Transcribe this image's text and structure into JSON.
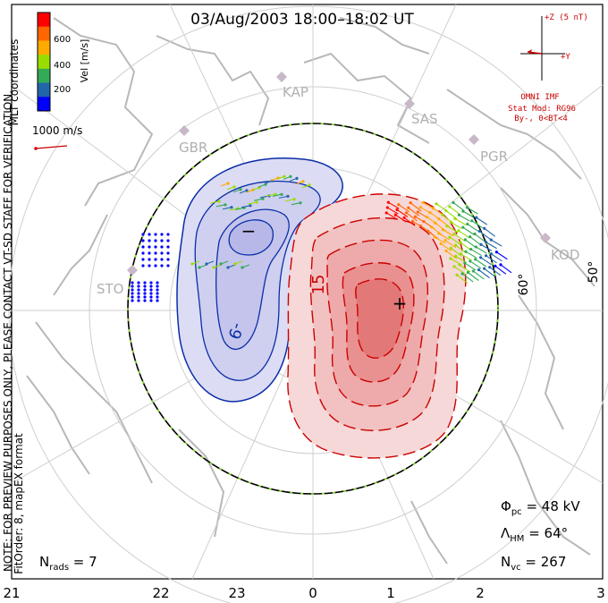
{
  "title": "03/Aug/2003 18:00–18:02 UT",
  "colorbar": {
    "label": "Vel [m/s]",
    "ticks": [
      "600",
      "400",
      "200"
    ],
    "colors": [
      "#ff0000",
      "#ff6600",
      "#ffaa00",
      "#99dd00",
      "#33aa55",
      "#2266aa",
      "#0000ff"
    ]
  },
  "coordinates_label": "MLT coordinates",
  "vector_scale": "1000 m/s",
  "side_note_1": "NOTE: FOR PREVIEW PURPOSES ONLY, PLEASE CONTACT VT-SD STAFF FOR VERIFICATION.",
  "side_note_2": "FitOrder: 8, mapEX format",
  "imf": {
    "z_label": "+Z (5 nT)",
    "y_label": "+Y",
    "source": "OMNI IMF",
    "stat_model": "Stat Mod: RG96",
    "condition": "By-, 0<BT<4"
  },
  "stations": [
    "KAP",
    "SAS",
    "GBR",
    "PGR",
    "KOD",
    "STO"
  ],
  "lat_labels": [
    "60°",
    "50°"
  ],
  "contours": {
    "min_label": "-9",
    "max_label": "15",
    "min_symbol": "−",
    "max_symbol": "+"
  },
  "colors": {
    "negative": "#0a2ea8",
    "positive": "#cc0000",
    "coast": "#b8b8b8",
    "grid": "#cfcfcf",
    "hmb": "#000000",
    "hmb_dash": "#88dd22",
    "imf": "#cc0000"
  },
  "stats": {
    "phi_pc": "Φpc = 48 kV",
    "phi_symbol": "Φ",
    "phi_sub": "pc",
    "phi_value": " = 48 kV",
    "lambda_symbol": "Λ",
    "lambda_sub": "HM",
    "lambda_value": " = 64°",
    "nvc_symbol": "N",
    "nvc_sub": "vc",
    "nvc_value": " = 267",
    "nrads_symbol": "N",
    "nrads_sub": "rads",
    "nrads_value": " = 7"
  },
  "mlt_labels": [
    "21",
    "22",
    "23",
    "0",
    "1",
    "2",
    "3"
  ]
}
